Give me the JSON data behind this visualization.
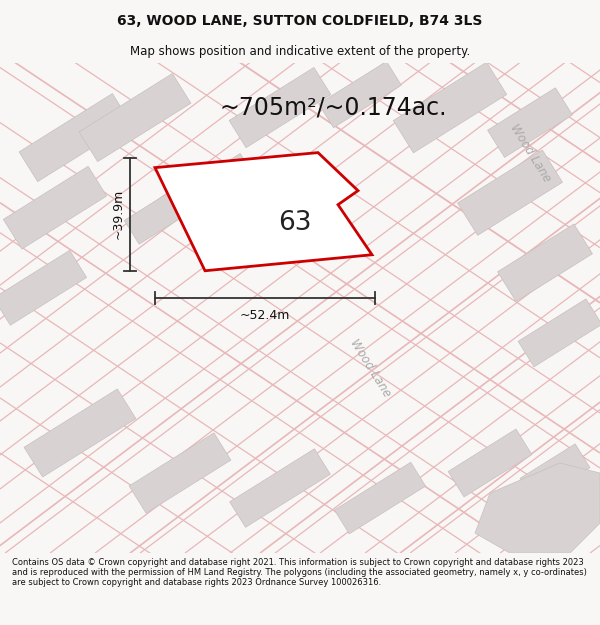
{
  "title": "63, WOOD LANE, SUTTON COLDFIELD, B74 3LS",
  "subtitle": "Map shows position and indicative extent of the property.",
  "area_label": "~705m²/~0.174ac.",
  "plot_number": "63",
  "width_label": "~52.4m",
  "height_label": "~39.9m",
  "road_label": "Wood Lane",
  "road_label_corner": "Wood Lane",
  "footer": "Contains OS data © Crown copyright and database right 2021. This information is subject to Crown copyright and database rights 2023 and is reproduced with the permission of HM Land Registry. The polygons (including the associated geometry, namely x, y co-ordinates) are subject to Crown copyright and database rights 2023 Ordnance Survey 100026316.",
  "bg_color": "#f9f6f6",
  "map_bg": "#f5f0f0",
  "plot_color": "#cc0000",
  "road_line_color": "#e8b8b8",
  "grey_block_face": "#d8d2d2",
  "grey_block_edge": "#c8c0c0",
  "title_fontsize": 10,
  "subtitle_fontsize": 8.5,
  "area_fontsize": 17,
  "plot_num_fontsize": 18,
  "dim_fontsize": 9,
  "footer_fontsize": 6.0
}
